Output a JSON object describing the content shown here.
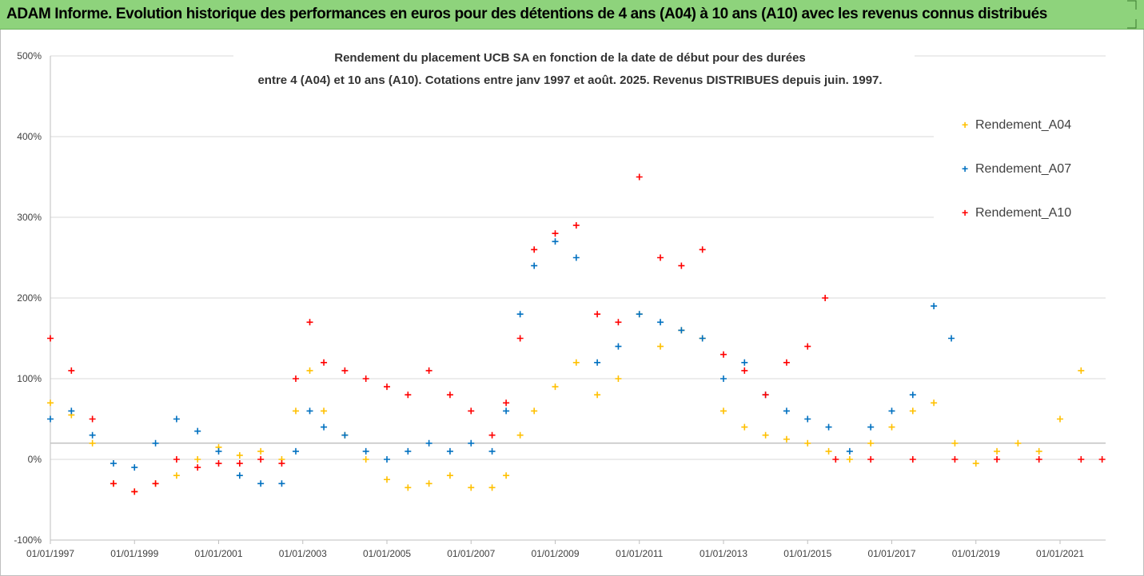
{
  "banner": {
    "text": "ADAM Informe. Evolution historique des performances en euros pour des détentions de 4 ans (A04) à 10 ans (A10) avec les revenus connus distribués"
  },
  "colors": {
    "banner_bg": "#8ed37c",
    "A04": "#ffc000",
    "A07": "#0070c0",
    "A10": "#ff0000"
  },
  "chart_data": {
    "type": "scatter",
    "title": "Rendement du placement UCB SA en fonction de la date de début pour des durées",
    "subtitle": "entre 4 (A04) et 10 ans (A10). Cotations entre janv 1997 et août. 2025. Revenus DISTRIBUES depuis juin. 1997.",
    "xlabel": "",
    "ylabel": "",
    "x_type": "date",
    "xlim": [
      "1997-01-01",
      "2022-02-01"
    ],
    "ylim": [
      -100,
      500
    ],
    "y_unit": "%",
    "y_ticks": [
      "-100%",
      "0%",
      "100%",
      "200%",
      "300%",
      "400%",
      "500%"
    ],
    "x_ticks": [
      "01/01/1997",
      "01/01/1999",
      "01/01/2001",
      "01/01/2003",
      "01/01/2005",
      "01/01/2007",
      "01/01/2009",
      "01/01/2011",
      "01/01/2013",
      "01/01/2015",
      "01/01/2017",
      "01/01/2019",
      "01/01/2021"
    ],
    "marker": "+",
    "grid": "horizontal",
    "legend_position": "top-right",
    "reference_line_y": 20,
    "series": [
      {
        "name": "Rendement_A04",
        "color": "#ffc000",
        "x": [
          "1997-01",
          "1997-07",
          "1998-01",
          "1998-07",
          "1999-01",
          "1999-07",
          "2000-01",
          "2000-07",
          "2001-01",
          "2001-07",
          "2002-01",
          "2002-07",
          "2002-11",
          "2003-03",
          "2003-07",
          "2004-01",
          "2004-07",
          "2005-01",
          "2005-07",
          "2006-01",
          "2006-07",
          "2007-01",
          "2007-07",
          "2007-11",
          "2008-03",
          "2008-07",
          "2009-01",
          "2009-07",
          "2010-01",
          "2010-07",
          "2011-01",
          "2011-07",
          "2012-01",
          "2012-07",
          "2013-01",
          "2013-07",
          "2014-01",
          "2014-07",
          "2015-01",
          "2015-07",
          "2016-01",
          "2016-07",
          "2017-01",
          "2017-07",
          "2018-01",
          "2018-07",
          "2019-01",
          "2019-07",
          "2020-01",
          "2020-07",
          "2021-01",
          "2021-07"
        ],
        "y": [
          70,
          55,
          20,
          -30,
          -40,
          -30,
          -20,
          0,
          15,
          5,
          10,
          0,
          60,
          110,
          60,
          30,
          0,
          -25,
          -35,
          -30,
          -20,
          -35,
          -35,
          -20,
          30,
          60,
          90,
          120,
          80,
          100,
          180,
          140,
          160,
          150,
          60,
          40,
          30,
          25,
          20,
          10,
          0,
          20,
          40,
          60,
          70,
          20,
          -5,
          10,
          20,
          10,
          50,
          110
        ]
      },
      {
        "name": "Rendement_A07",
        "color": "#0070c0",
        "x": [
          "1997-01",
          "1997-07",
          "1998-01",
          "1998-07",
          "1999-01",
          "1999-07",
          "2000-01",
          "2000-07",
          "2001-01",
          "2001-07",
          "2002-01",
          "2002-07",
          "2002-11",
          "2003-03",
          "2003-07",
          "2004-01",
          "2004-07",
          "2005-01",
          "2005-07",
          "2006-01",
          "2006-07",
          "2007-01",
          "2007-07",
          "2007-11",
          "2008-03",
          "2008-07",
          "2009-01",
          "2009-07",
          "2010-01",
          "2010-07",
          "2011-01",
          "2011-07",
          "2012-01",
          "2012-07",
          "2013-01",
          "2013-07",
          "2014-01",
          "2014-07",
          "2015-01",
          "2015-07",
          "2016-01",
          "2016-07",
          "2017-01",
          "2017-07",
          "2018-01",
          "2018-06"
        ],
        "y": [
          50,
          60,
          30,
          -5,
          -10,
          20,
          50,
          35,
          10,
          -20,
          -30,
          -30,
          10,
          60,
          40,
          30,
          10,
          0,
          10,
          20,
          10,
          20,
          10,
          60,
          180,
          240,
          270,
          250,
          120,
          140,
          180,
          170,
          160,
          150,
          100,
          120,
          80,
          60,
          50,
          40,
          10,
          40,
          60,
          80,
          190,
          150
        ]
      },
      {
        "name": "Rendement_A10",
        "color": "#ff0000",
        "x": [
          "1997-01",
          "1997-07",
          "1998-01",
          "1998-07",
          "1999-01",
          "1999-07",
          "2000-01",
          "2000-07",
          "2001-01",
          "2001-07",
          "2002-01",
          "2002-07",
          "2002-11",
          "2003-03",
          "2003-07",
          "2004-01",
          "2004-07",
          "2005-01",
          "2005-07",
          "2006-01",
          "2006-07",
          "2007-01",
          "2007-07",
          "2007-11",
          "2008-03",
          "2008-07",
          "2009-01",
          "2009-07",
          "2010-01",
          "2010-07",
          "2011-01",
          "2011-07",
          "2012-01",
          "2012-07",
          "2013-01",
          "2013-07",
          "2014-01",
          "2014-07",
          "2015-01",
          "2015-06",
          "2015-09",
          "2016-07",
          "2017-07",
          "2018-07",
          "2019-07",
          "2020-07",
          "2021-07",
          "2022-01"
        ],
        "y": [
          150,
          110,
          50,
          -30,
          -40,
          -30,
          0,
          -10,
          -5,
          -5,
          0,
          -5,
          100,
          170,
          120,
          110,
          100,
          90,
          80,
          110,
          80,
          60,
          30,
          70,
          150,
          260,
          280,
          290,
          180,
          170,
          350,
          250,
          240,
          260,
          130,
          110,
          80,
          120,
          140,
          200,
          0,
          0,
          0,
          0,
          0,
          0,
          0,
          0
        ]
      }
    ]
  }
}
